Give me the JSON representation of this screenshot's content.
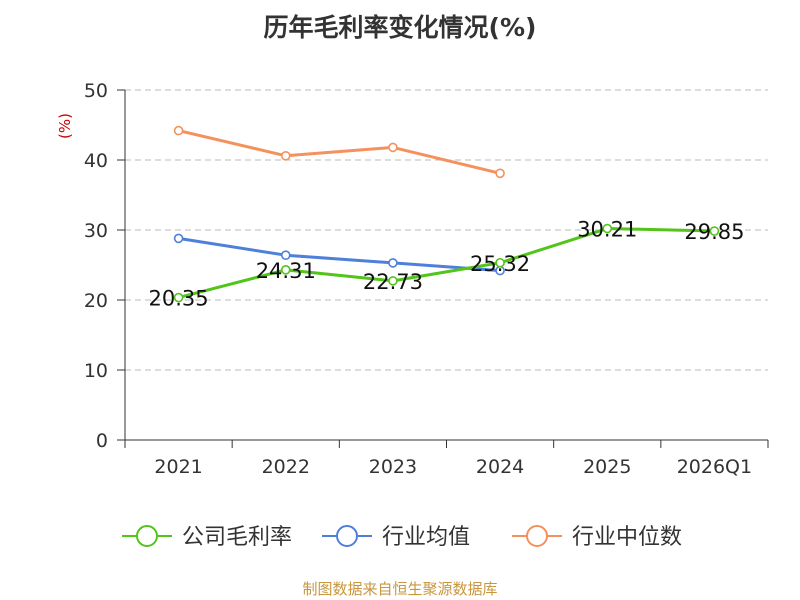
{
  "chart_data": {
    "type": "line",
    "title": "历年毛利率变化情况(%)",
    "ylabel": "(%)",
    "xlabel": "",
    "categories": [
      "2021",
      "2022",
      "2023",
      "2024",
      "2025",
      "2026Q1"
    ],
    "ylim": [
      0,
      50
    ],
    "yticks": [
      0,
      10,
      20,
      30,
      40,
      50
    ],
    "grid": true,
    "legend_position": "bottom",
    "series": [
      {
        "name": "公司毛利率",
        "color": "#52c41a",
        "values": [
          20.35,
          24.31,
          22.73,
          25.32,
          30.21,
          29.85
        ],
        "show_labels": true
      },
      {
        "name": "行业均值",
        "color": "#4e7fdb",
        "values": [
          28.8,
          26.4,
          25.3,
          24.2,
          null,
          null
        ],
        "show_labels": false
      },
      {
        "name": "行业中位数",
        "color": "#f4915c",
        "values": [
          44.2,
          40.6,
          41.8,
          38.1,
          null,
          null
        ],
        "show_labels": false
      }
    ]
  },
  "source": "制图数据来自恒生聚源数据库"
}
